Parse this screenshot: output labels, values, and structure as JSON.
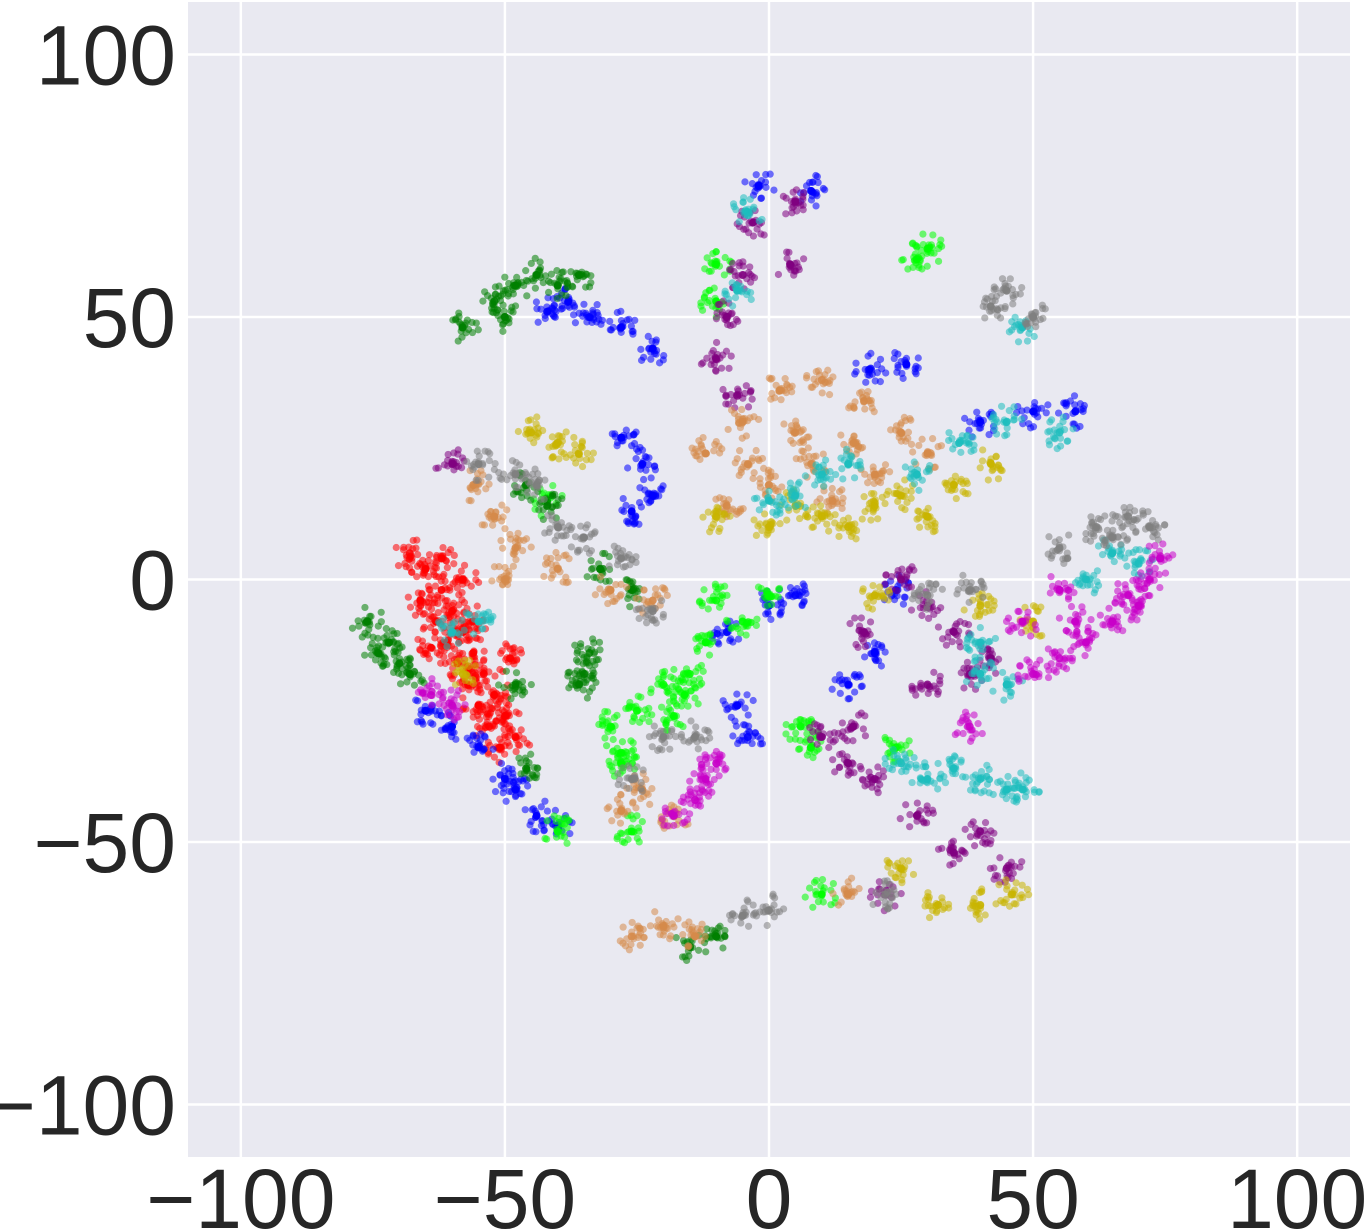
{
  "chart_data": {
    "type": "scatter",
    "title": "",
    "xlabel": "",
    "ylabel": "",
    "xlim": [
      -110,
      110
    ],
    "ylim": [
      -110,
      110
    ],
    "grid": true,
    "legend": "none",
    "background_color": "#e9e9f1",
    "grid_color": "#ffffff",
    "x_ticks": [
      -100,
      -50,
      0,
      50,
      100
    ],
    "y_ticks": [
      100,
      50,
      0,
      -50,
      -100
    ],
    "x_tick_labels": [
      "−100",
      "−50",
      "0",
      "50",
      "100"
    ],
    "y_tick_labels": [
      "100",
      "50",
      "0",
      "−50",
      "−100"
    ],
    "series": [
      {
        "color": "#ff0000",
        "points": [
          [
            -68,
            5
          ],
          [
            -65,
            2
          ],
          [
            -62,
            -2
          ],
          [
            -60,
            -6
          ],
          [
            -58,
            -10
          ],
          [
            -56,
            -14
          ],
          [
            -54,
            -18
          ],
          [
            -52,
            -22
          ],
          [
            -50,
            -26
          ],
          [
            -48,
            -30
          ],
          [
            -66,
            -4
          ],
          [
            -63,
            -8
          ],
          [
            -61,
            -12
          ],
          [
            -59,
            -16
          ],
          [
            -57,
            -20
          ],
          [
            -55,
            -24
          ],
          [
            -53,
            -28
          ],
          [
            -51,
            -32
          ],
          [
            -49,
            -15
          ],
          [
            -62,
            4
          ],
          [
            -58,
            0
          ],
          [
            -64,
            -13
          ],
          [
            -56,
            -8
          ]
        ]
      },
      {
        "color": "#0000ff",
        "points": [
          [
            -42,
            51
          ],
          [
            -38,
            53
          ],
          [
            -34,
            50
          ],
          [
            -28,
            48
          ],
          [
            -22,
            44
          ],
          [
            -28,
            27
          ],
          [
            -24,
            22
          ],
          [
            -22,
            16
          ],
          [
            -26,
            13
          ],
          [
            -65,
            -25
          ],
          [
            -60,
            -28
          ],
          [
            -55,
            -32
          ],
          [
            -48,
            -40
          ],
          [
            -44,
            -45
          ],
          [
            -40,
            -47
          ],
          [
            -50,
            -38
          ],
          [
            -6,
            -24
          ],
          [
            -4,
            -30
          ],
          [
            -8,
            -10
          ],
          [
            0,
            -5
          ],
          [
            5,
            -3
          ],
          [
            24,
            -2
          ],
          [
            20,
            -14
          ],
          [
            15,
            -20
          ],
          [
            58,
            32
          ],
          [
            50,
            32
          ],
          [
            40,
            30
          ],
          [
            8,
            74
          ],
          [
            -2,
            75
          ],
          [
            26,
            41
          ],
          [
            19,
            40
          ]
        ]
      },
      {
        "color": "#00ff00",
        "points": [
          [
            -10,
            -4
          ],
          [
            -5,
            -8
          ],
          [
            0,
            -3
          ],
          [
            -15,
            -18
          ],
          [
            -20,
            -20
          ],
          [
            -25,
            -25
          ],
          [
            -30,
            -28
          ],
          [
            -28,
            -33
          ],
          [
            -26,
            -48
          ],
          [
            -18,
            -26
          ],
          [
            -12,
            -12
          ],
          [
            6,
            -28
          ],
          [
            8,
            -32
          ],
          [
            -10,
            53
          ],
          [
            -10,
            60
          ],
          [
            30,
            63
          ],
          [
            28,
            61
          ],
          [
            -40,
            -48
          ],
          [
            -42,
            15
          ],
          [
            24,
            -32
          ],
          [
            10,
            -60
          ],
          [
            -28,
            -35
          ],
          [
            -16,
            -22
          ]
        ]
      },
      {
        "color": "#008000",
        "points": [
          [
            -76,
            -8
          ],
          [
            -72,
            -12
          ],
          [
            -70,
            -16
          ],
          [
            -74,
            -14
          ],
          [
            -68,
            -18
          ],
          [
            -34,
            -14
          ],
          [
            -35,
            -18
          ],
          [
            -36,
            -20
          ],
          [
            -58,
            48
          ],
          [
            -52,
            53
          ],
          [
            -48,
            56
          ],
          [
            -44,
            58
          ],
          [
            -36,
            58
          ],
          [
            -46,
            18
          ],
          [
            -42,
            14
          ],
          [
            -32,
            2
          ],
          [
            -26,
            -2
          ],
          [
            -48,
            -20
          ],
          [
            -46,
            -36
          ],
          [
            -15,
            -70
          ],
          [
            -10,
            -68
          ],
          [
            -50,
            50
          ],
          [
            -40,
            56
          ]
        ]
      },
      {
        "color": "#800080",
        "points": [
          [
            -10,
            42
          ],
          [
            -8,
            50
          ],
          [
            -5,
            58
          ],
          [
            -3,
            68
          ],
          [
            5,
            72
          ],
          [
            4,
            60
          ],
          [
            -6,
            35
          ],
          [
            25,
            0
          ],
          [
            35,
            -10
          ],
          [
            42,
            -15
          ],
          [
            30,
            -20
          ],
          [
            10,
            -30
          ],
          [
            15,
            -35
          ],
          [
            20,
            -38
          ],
          [
            28,
            -45
          ],
          [
            35,
            -52
          ],
          [
            45,
            -55
          ],
          [
            22,
            -60
          ],
          [
            16,
            -28
          ],
          [
            40,
            -48
          ],
          [
            -60,
            22
          ],
          [
            18,
            -10
          ],
          [
            30,
            -5
          ],
          [
            38,
            -18
          ]
        ]
      },
      {
        "color": "#d68a4b",
        "points": [
          [
            -12,
            24
          ],
          [
            -5,
            30
          ],
          [
            2,
            36
          ],
          [
            10,
            38
          ],
          [
            18,
            34
          ],
          [
            25,
            28
          ],
          [
            8,
            22
          ],
          [
            0,
            18
          ],
          [
            -8,
            14
          ],
          [
            12,
            15
          ],
          [
            20,
            20
          ],
          [
            30,
            24
          ],
          [
            -56,
            18
          ],
          [
            -52,
            12
          ],
          [
            -48,
            6
          ],
          [
            -40,
            2
          ],
          [
            -30,
            -2
          ],
          [
            -22,
            -4
          ],
          [
            -50,
            0
          ],
          [
            -24,
            -40
          ],
          [
            -28,
            -44
          ],
          [
            -18,
            -45
          ],
          [
            -26,
            -68
          ],
          [
            -20,
            -66
          ],
          [
            -14,
            -68
          ],
          [
            15,
            -60
          ],
          [
            5,
            28
          ],
          [
            16,
            26
          ],
          [
            -4,
            22
          ]
        ]
      },
      {
        "color": "#c8b400",
        "points": [
          [
            -10,
            12
          ],
          [
            0,
            10
          ],
          [
            10,
            12
          ],
          [
            20,
            14
          ],
          [
            30,
            12
          ],
          [
            25,
            16
          ],
          [
            35,
            18
          ],
          [
            42,
            22
          ],
          [
            15,
            10
          ],
          [
            -45,
            28
          ],
          [
            -40,
            26
          ],
          [
            -36,
            24
          ],
          [
            -58,
            -18
          ],
          [
            25,
            -55
          ],
          [
            32,
            -62
          ],
          [
            40,
            -62
          ],
          [
            46,
            -60
          ],
          [
            20,
            -3
          ],
          [
            40,
            -5
          ],
          [
            50,
            -8
          ],
          [
            5,
            14
          ]
        ]
      },
      {
        "color": "#1ebebe",
        "points": [
          [
            5,
            16
          ],
          [
            0,
            15
          ],
          [
            10,
            20
          ],
          [
            15,
            22
          ],
          [
            28,
            20
          ],
          [
            36,
            26
          ],
          [
            45,
            30
          ],
          [
            55,
            28
          ],
          [
            25,
            -35
          ],
          [
            30,
            -38
          ],
          [
            35,
            -36
          ],
          [
            40,
            -38
          ],
          [
            45,
            -40
          ],
          [
            48,
            -40
          ],
          [
            45,
            -20
          ],
          [
            40,
            -18
          ],
          [
            60,
            0
          ],
          [
            65,
            5
          ],
          [
            70,
            3
          ],
          [
            -55,
            -8
          ],
          [
            -60,
            -10
          ],
          [
            -6,
            55
          ],
          [
            -4,
            70
          ],
          [
            48,
            48
          ],
          [
            40,
            -12
          ]
        ]
      },
      {
        "color": "#808080",
        "points": [
          [
            -55,
            22
          ],
          [
            -48,
            20
          ],
          [
            -44,
            18
          ],
          [
            -40,
            10
          ],
          [
            -35,
            8
          ],
          [
            -28,
            4
          ],
          [
            -22,
            -6
          ],
          [
            -26,
            -38
          ],
          [
            -20,
            -30
          ],
          [
            -5,
            -64
          ],
          [
            0,
            -63
          ],
          [
            55,
            6
          ],
          [
            62,
            10
          ],
          [
            68,
            12
          ],
          [
            72,
            10
          ],
          [
            65,
            8
          ],
          [
            45,
            55
          ],
          [
            42,
            52
          ],
          [
            50,
            50
          ],
          [
            38,
            -2
          ],
          [
            22,
            -60
          ],
          [
            30,
            -3
          ],
          [
            -14,
            -30
          ]
        ]
      },
      {
        "color": "#c800c8",
        "points": [
          [
            -64,
            -22
          ],
          [
            -60,
            -24
          ],
          [
            -18,
            -45
          ],
          [
            -14,
            -42
          ],
          [
            -10,
            -35
          ],
          [
            60,
            -12
          ],
          [
            65,
            -8
          ],
          [
            70,
            -5
          ],
          [
            72,
            0
          ],
          [
            74,
            4
          ],
          [
            68,
            -3
          ],
          [
            55,
            -15
          ],
          [
            50,
            -18
          ],
          [
            48,
            -8
          ],
          [
            55,
            -2
          ],
          [
            -12,
            -38
          ],
          [
            38,
            -28
          ],
          [
            58,
            -8
          ]
        ]
      }
    ]
  }
}
